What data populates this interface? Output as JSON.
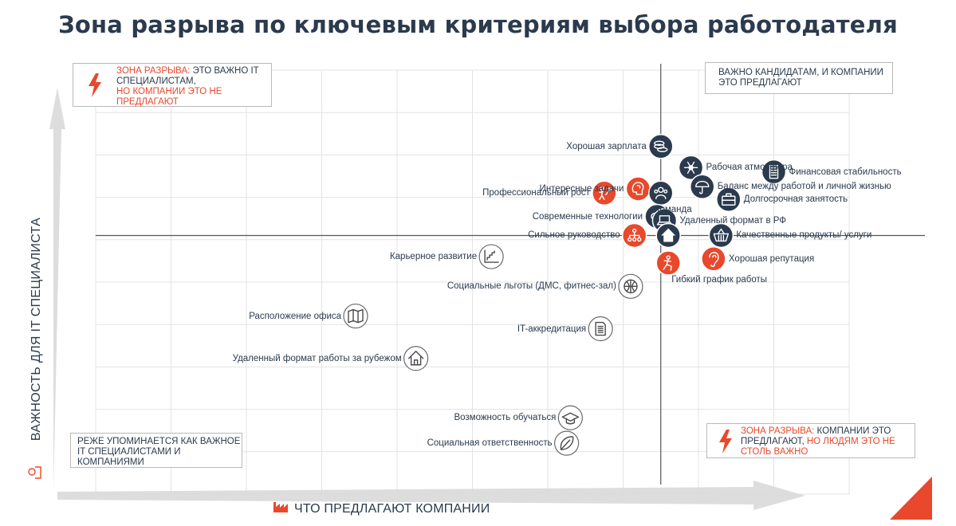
{
  "title": "Зона разрыва по ключевым критериям выбора работодателя",
  "quadrants": {
    "top_left": {
      "red_prefix": "Зона разрыва:",
      "dark_text": " это важно IT специалистам,",
      "red_suffix": "но компании это не предлагают"
    },
    "top_right": {
      "text": "Важно кандидатам, и компании это предлагают"
    },
    "bottom_left": {
      "text": "Реже упоминается как важное IT специалистами и компаниями"
    },
    "bottom_right": {
      "red_prefix": "Зона разрыва:",
      "dark_text": " компании это предлагают,",
      "red_suffix": " но людям это не столь важно"
    }
  },
  "colors": {
    "dark": "#2b3a4d",
    "accent": "#e8482c",
    "grid": "#e3e3e3",
    "axis_arrow": "#d9d9d9",
    "quadrant_line": "#555555"
  },
  "chart_data": {
    "type": "scatter",
    "title": "Зона разрыва по ключевым критериям выбора работодателя",
    "xlabel": "Что предлагают компании",
    "ylabel": "Важность для IT специалиста",
    "xlim": [
      0,
      100
    ],
    "ylim": [
      0,
      100
    ],
    "grid": true,
    "quadrant_divider": {
      "x": 75,
      "y": 61
    },
    "points": [
      {
        "label": "Хорошая зарплата",
        "x": 75,
        "y": 82,
        "group": "dark",
        "icon": "coins-icon",
        "label_side": "left"
      },
      {
        "label": "Рабочая атмосфера",
        "x": 79,
        "y": 77,
        "group": "dark",
        "icon": "star-burst-icon",
        "label_side": "right"
      },
      {
        "label": "Финансовая стабильность",
        "x": 90,
        "y": 76,
        "group": "dark",
        "icon": "building-icon",
        "label_side": "right"
      },
      {
        "label": "Интересные задачи",
        "x": 72,
        "y": 72,
        "group": "accent",
        "icon": "brain-icon",
        "label_side": "left"
      },
      {
        "label": "Профессиональный рост",
        "x": 67.5,
        "y": 71,
        "group": "accent",
        "icon": "growth-person-icon",
        "label_side": "left"
      },
      {
        "label": "Команда",
        "x": 75,
        "y": 71,
        "group": "dark",
        "icon": "team-icon",
        "label_side": "below"
      },
      {
        "label": "Баланс между работой и личной жизнью",
        "x": 80.5,
        "y": 72.5,
        "group": "dark",
        "icon": "umbrella-icon",
        "label_side": "right"
      },
      {
        "label": "Долгосрочная занятость",
        "x": 84,
        "y": 69.5,
        "group": "dark",
        "icon": "briefcase-icon",
        "label_side": "right"
      },
      {
        "label": "Современные технологии",
        "x": 74.5,
        "y": 65.5,
        "group": "dark",
        "icon": "gears-icon",
        "label_side": "left"
      },
      {
        "label": "Удаленный формат в РФ",
        "x": 75.5,
        "y": 64.5,
        "group": "dark",
        "icon": "laptop-icon",
        "label_side": "right"
      },
      {
        "label": "Сильное руководство",
        "x": 71.5,
        "y": 61,
        "group": "accent",
        "icon": "hierarchy-icon",
        "label_side": "left"
      },
      {
        "label": "Удаленный формат в РФ",
        "x": 76,
        "y": 61,
        "group": "dark",
        "icon": "home-icon",
        "label_side": "none"
      },
      {
        "label": "Качественные продукты/ услуги",
        "x": 83,
        "y": 61,
        "group": "dark",
        "icon": "basket-icon",
        "label_side": "right"
      },
      {
        "label": "Гибкий график работы",
        "x": 76,
        "y": 54.5,
        "group": "accent",
        "icon": "flexible-person-icon",
        "label_side": "below-right"
      },
      {
        "label": "Хорошая репутация",
        "x": 82,
        "y": 55.5,
        "group": "accent",
        "icon": "ear-icon",
        "label_side": "right"
      },
      {
        "label": "Карьерное развитие",
        "x": 52.5,
        "y": 56,
        "group": "outline",
        "icon": "stairs-chart-icon",
        "label_side": "left"
      },
      {
        "label": "Социальные льготы (ДМС, фитнес-зал)",
        "x": 71,
        "y": 49,
        "group": "outline",
        "icon": "ball-icon",
        "label_side": "left"
      },
      {
        "label": "Расположение офиса",
        "x": 34.5,
        "y": 42,
        "group": "outline",
        "icon": "map-icon",
        "label_side": "left"
      },
      {
        "label": "IT-аккредитация",
        "x": 67,
        "y": 39,
        "group": "outline",
        "icon": "document-icon",
        "label_side": "left"
      },
      {
        "label": "Удаленный формат работы за рубежом",
        "x": 42.5,
        "y": 32,
        "group": "outline",
        "icon": "house-outline-icon",
        "label_side": "left"
      },
      {
        "label": "Возможность обучаться",
        "x": 63,
        "y": 18,
        "group": "outline",
        "icon": "graduation-cap-icon",
        "label_side": "left"
      },
      {
        "label": "Социальная ответственность",
        "x": 62.5,
        "y": 12,
        "group": "outline",
        "icon": "leaf-icon",
        "label_side": "left"
      }
    ]
  }
}
